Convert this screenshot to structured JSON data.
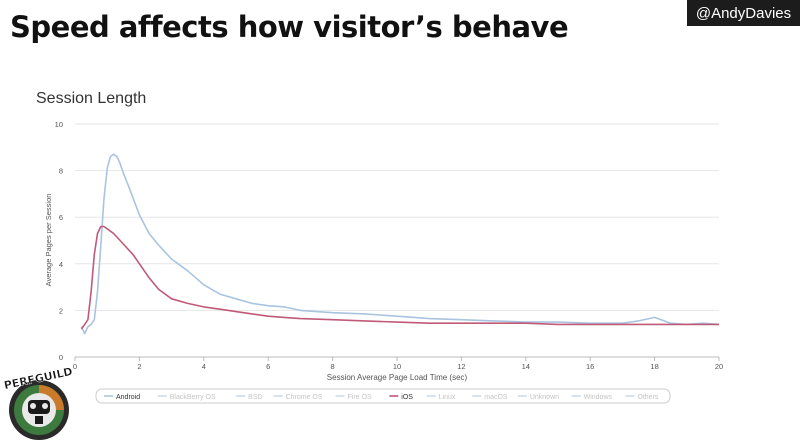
{
  "slide": {
    "title": "Speed affects how visitor’s behave",
    "handle": "@AndyDavies"
  },
  "logo": {
    "text": "PERFGUILD"
  },
  "colors": {
    "android": "#a9c4e0",
    "ios": "#c05a78",
    "grid": "#e6e6e6",
    "axis": "#444444"
  },
  "chart_data": {
    "type": "line",
    "title": "Session Length",
    "xlabel": "Session Average Page Load Time (sec)",
    "ylabel": "Average Pages per Session",
    "xlim": [
      0,
      20
    ],
    "ylim": [
      0,
      10
    ],
    "x_ticks": [
      0,
      2,
      4,
      6,
      8,
      10,
      12,
      14,
      16,
      18,
      20
    ],
    "y_ticks": [
      0,
      2,
      4,
      6,
      8,
      10
    ],
    "grid": true,
    "legend_position": "bottom",
    "legend": [
      "Android",
      "BlackBerry OS",
      "BSD",
      "Chrome OS",
      "Fire OS",
      "iOS",
      "Linux",
      "macOS",
      "Unknown",
      "Windows",
      "Others"
    ],
    "legend_active": [
      "Android",
      "iOS"
    ],
    "series": [
      {
        "name": "Android",
        "x": [
          0.2,
          0.3,
          0.4,
          0.5,
          0.6,
          0.7,
          0.8,
          0.9,
          1.0,
          1.1,
          1.2,
          1.3,
          1.4,
          1.5,
          1.7,
          2.0,
          2.3,
          2.6,
          3.0,
          3.5,
          4.0,
          4.5,
          5.0,
          5.5,
          6.0,
          6.5,
          7.0,
          8.0,
          9.0,
          10.0,
          11.0,
          12.0,
          13.0,
          14.0,
          15.0,
          16.0,
          17.0,
          17.5,
          18.0,
          18.5,
          19.0,
          19.5,
          20.0
        ],
        "y": [
          1.3,
          1.0,
          1.3,
          1.4,
          1.6,
          2.8,
          4.8,
          6.8,
          8.1,
          8.6,
          8.7,
          8.6,
          8.3,
          7.9,
          7.2,
          6.1,
          5.3,
          4.8,
          4.2,
          3.7,
          3.1,
          2.7,
          2.5,
          2.3,
          2.2,
          2.15,
          2.0,
          1.9,
          1.85,
          1.75,
          1.65,
          1.6,
          1.55,
          1.5,
          1.5,
          1.45,
          1.45,
          1.55,
          1.7,
          1.45,
          1.4,
          1.45,
          1.4
        ]
      },
      {
        "name": "iOS",
        "x": [
          0.2,
          0.3,
          0.4,
          0.5,
          0.6,
          0.7,
          0.8,
          0.9,
          1.0,
          1.2,
          1.4,
          1.6,
          1.8,
          2.0,
          2.3,
          2.6,
          3.0,
          3.5,
          4.0,
          4.5,
          5.0,
          5.5,
          6.0,
          6.5,
          7.0,
          8.0,
          9.0,
          10.0,
          11.0,
          12.0,
          13.0,
          14.0,
          15.0,
          16.0,
          17.0,
          18.0,
          19.0,
          20.0
        ],
        "y": [
          1.2,
          1.4,
          1.6,
          2.8,
          4.4,
          5.3,
          5.6,
          5.6,
          5.5,
          5.3,
          5.0,
          4.7,
          4.4,
          4.0,
          3.4,
          2.9,
          2.5,
          2.3,
          2.15,
          2.05,
          1.95,
          1.85,
          1.75,
          1.7,
          1.65,
          1.6,
          1.55,
          1.5,
          1.45,
          1.45,
          1.45,
          1.45,
          1.4,
          1.4,
          1.4,
          1.4,
          1.4,
          1.4
        ]
      }
    ]
  }
}
